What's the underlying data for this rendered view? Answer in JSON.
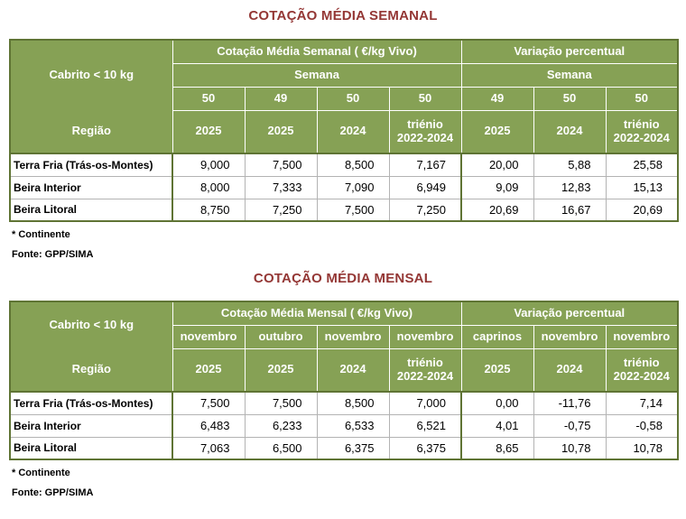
{
  "weekly": {
    "title": "COTAÇÃO MÉDIA SEMANAL",
    "product": "Cabrito < 10 kg",
    "region_label": "Região",
    "group1": "Cotação Média Semanal ( €/kg Vivo)",
    "group2": "Variação percentual",
    "subheader1": "Semana",
    "subheader2": "Semana",
    "cols": [
      "50",
      "49",
      "50",
      "50",
      "49",
      "50",
      "50"
    ],
    "years": [
      "2025",
      "2025",
      "2024",
      "triénio\n2022-2024",
      "2025",
      "2024",
      "triénio\n2022-2024"
    ],
    "rows": [
      {
        "region": "Terra Fria (Trás-os-Montes)",
        "values": [
          "9,000",
          "7,500",
          "8,500",
          "7,167",
          "20,00",
          "5,88",
          "25,58"
        ]
      },
      {
        "region": "Beira Interior",
        "values": [
          "8,000",
          "7,333",
          "7,090",
          "6,949",
          "9,09",
          "12,83",
          "15,13"
        ]
      },
      {
        "region": "Beira Litoral",
        "values": [
          "8,750",
          "7,250",
          "7,500",
          "7,250",
          "20,69",
          "16,67",
          "20,69"
        ]
      }
    ],
    "footnote1": "* Continente",
    "footnote2": "Fonte: GPP/SIMA"
  },
  "monthly": {
    "title": "COTAÇÃO MÉDIA MENSAL",
    "product": "Cabrito < 10 kg",
    "region_label": "Região",
    "group1": "Cotação Média Mensal ( €/kg Vivo)",
    "group2": "Variação percentual",
    "cols": [
      "novembro",
      "outubro",
      "novembro",
      "novembro",
      "caprinos",
      "novembro",
      "novembro"
    ],
    "years": [
      "2025",
      "2025",
      "2024",
      "triénio\n2022-2024",
      "2025",
      "2024",
      "triénio\n2022-2024"
    ],
    "rows": [
      {
        "region": "Terra Fria (Trás-os-Montes)",
        "values": [
          "7,500",
          "7,500",
          "8,500",
          "7,000",
          "0,00",
          "-11,76",
          "7,14"
        ]
      },
      {
        "region": "Beira Interior",
        "values": [
          "6,483",
          "6,233",
          "6,533",
          "6,521",
          "4,01",
          "-0,75",
          "-0,58"
        ]
      },
      {
        "region": "Beira Litoral",
        "values": [
          "7,063",
          "6,500",
          "6,375",
          "6,375",
          "8,65",
          "10,78",
          "10,78"
        ]
      }
    ],
    "footnote1": "* Continente",
    "footnote2": "Fonte: GPP/SIMA"
  },
  "colors": {
    "header_green": "#86A155",
    "dark_olive_border": "#5F7434",
    "light_gray_border": "#B3B3B3",
    "title_maroon": "#943735"
  }
}
